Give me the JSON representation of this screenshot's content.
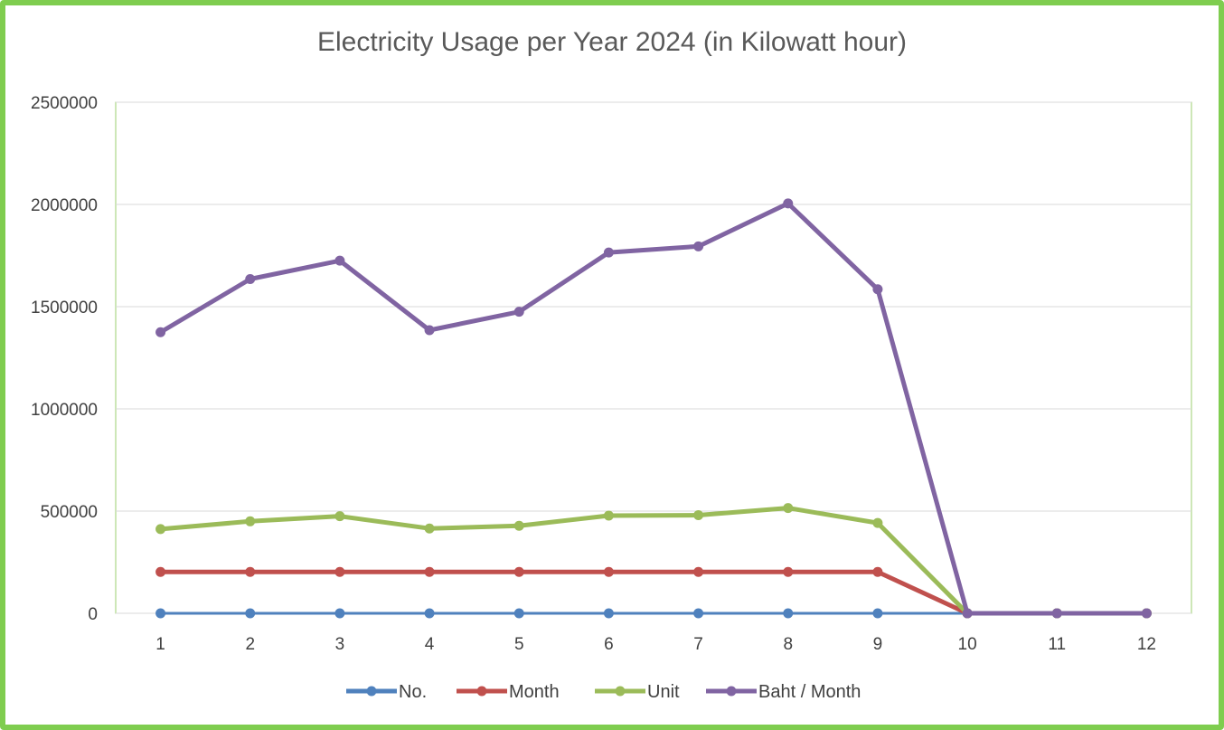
{
  "chart_data": {
    "type": "line",
    "title": "Electricity Usage per Year 2024 (in Kilowatt hour)",
    "xlabel": "",
    "ylabel": "",
    "categories": [
      "1",
      "2",
      "3",
      "4",
      "5",
      "6",
      "7",
      "8",
      "9",
      "10",
      "11",
      "12"
    ],
    "ylim": [
      0,
      2500000
    ],
    "yticks": [
      "0",
      "500000",
      "1000000",
      "1500000",
      "2000000",
      "2500000"
    ],
    "grid": true,
    "legend_position": "bottom",
    "series": [
      {
        "name": "No.",
        "color": "#4f81bd",
        "values": [
          1,
          2,
          3,
          4,
          5,
          6,
          7,
          8,
          9,
          10,
          11,
          12
        ]
      },
      {
        "name": "Month",
        "color": "#c0504d",
        "values": [
          202401,
          202402,
          202403,
          202404,
          202405,
          202406,
          202407,
          202408,
          202409,
          0,
          0,
          0
        ]
      },
      {
        "name": "Unit",
        "color": "#9bbb59",
        "values": [
          412000,
          450000,
          475000,
          415000,
          428000,
          478000,
          480000,
          515000,
          442000,
          0,
          0,
          0
        ]
      },
      {
        "name": "Baht / Month",
        "color": "#8064a2",
        "values": [
          1375000,
          1635000,
          1725000,
          1385000,
          1475000,
          1765000,
          1795000,
          2005000,
          1585000,
          0,
          0,
          0
        ]
      }
    ]
  }
}
